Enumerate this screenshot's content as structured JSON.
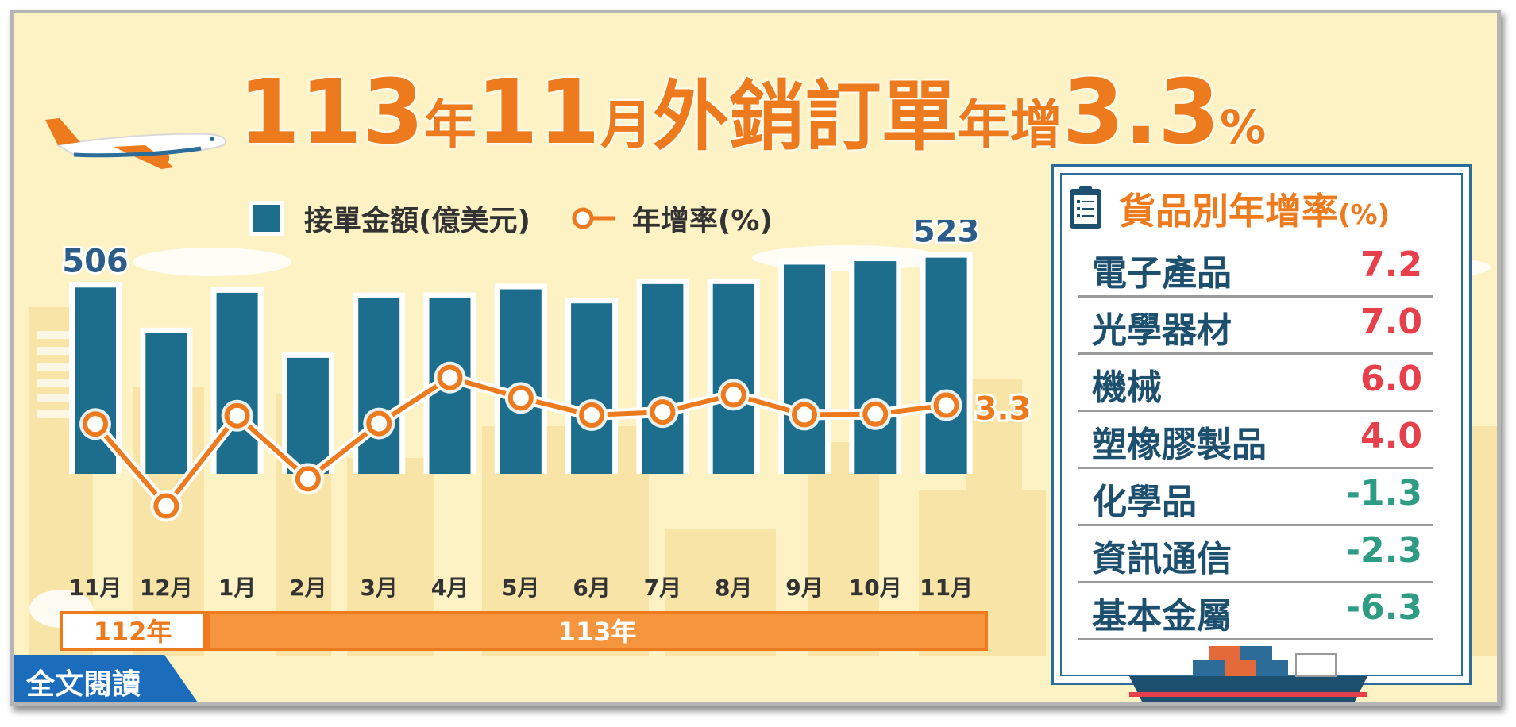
{
  "title": {
    "p1": "113",
    "p2": "年",
    "p3": "11",
    "p4": "月",
    "p5": "外銷訂單",
    "p6": "年增",
    "p7": "3.3",
    "p8": "%"
  },
  "legend": {
    "bar_label": "接單金額(億美元)",
    "line_label": "年增率(%)"
  },
  "chart_data": {
    "type": "bar+line",
    "categories": [
      "11月",
      "12月",
      "1月",
      "2月",
      "3月",
      "4月",
      "5月",
      "6月",
      "7月",
      "8月",
      "9月",
      "10月",
      "11月"
    ],
    "series": [
      {
        "name": "接單金額(億美元)",
        "type": "bar",
        "values": [
          506,
          480,
          503,
          466,
          500,
          500,
          505,
          497,
          508,
          508,
          519,
          521,
          523
        ],
        "labels": {
          "0": "506",
          "12": "523"
        }
      },
      {
        "name": "年增率(%)",
        "type": "line",
        "values": [
          -0.3,
          -16,
          1.3,
          -10.8,
          -0.2,
          8.6,
          4.7,
          1.4,
          2.0,
          5.3,
          1.5,
          1.6,
          3.3
        ],
        "labels": {
          "12": "3.3"
        }
      }
    ],
    "year_bands": [
      {
        "label": "112年",
        "from": 0,
        "to": 0
      },
      {
        "label": "113年",
        "from": 1,
        "to": 12
      }
    ],
    "bar_ylim": [
      400,
      540
    ],
    "line_ylim": [
      -22,
      16
    ],
    "colors": {
      "bar": "#1d6e8c",
      "line": "#ee7a1e"
    }
  },
  "panel": {
    "title": "貨品別年增率",
    "title_unit": "(%)",
    "rows": [
      {
        "label": "電子產品",
        "value": "7.2",
        "sign": "pos"
      },
      {
        "label": "光學器材",
        "value": "7.0",
        "sign": "pos"
      },
      {
        "label": "機械",
        "value": "6.0",
        "sign": "pos"
      },
      {
        "label": "塑橡膠製品",
        "value": "4.0",
        "sign": "pos"
      },
      {
        "label": "化學品",
        "value": "-1.3",
        "sign": "neg"
      },
      {
        "label": "資訊通信",
        "value": "-2.3",
        "sign": "neg"
      },
      {
        "label": "基本金屬",
        "value": "-6.3",
        "sign": "neg"
      }
    ],
    "colors": {
      "pos": "#e8404b",
      "neg": "#2e9c82",
      "label": "#1d4f6e"
    }
  },
  "read_button": {
    "label": "全文閱讀"
  },
  "icons": {
    "plane": "airplane-icon",
    "ship": "cargo-ship-icon",
    "clipboard": "clipboard-icon"
  }
}
